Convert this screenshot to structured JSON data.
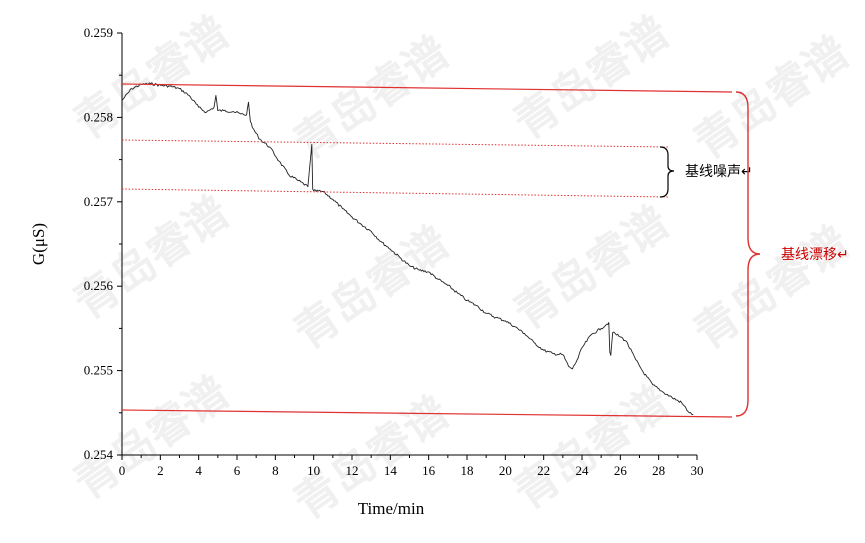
{
  "chart_data": {
    "type": "line",
    "xlabel": "Time/min",
    "ylabel": "G(μS)",
    "xlim": [
      0,
      30
    ],
    "ylim": [
      0.254,
      0.259
    ],
    "x_ticks": [
      "0",
      "2",
      "4",
      "6",
      "8",
      "10",
      "12",
      "14",
      "16",
      "18",
      "20",
      "22",
      "24",
      "26",
      "28",
      "30"
    ],
    "y_ticks": [
      "0.254",
      "0.255",
      "0.256",
      "0.257",
      "0.258",
      "0.259"
    ],
    "grid": false,
    "series": [
      {
        "color": "#222222",
        "x": [
          0,
          0.5,
          1,
          1.5,
          2,
          2.5,
          3,
          3.5,
          4,
          4.4,
          4.8,
          4.9,
          5.0,
          5.3,
          5.8,
          6.2,
          6.5,
          6.6,
          6.7,
          6.8,
          7.2,
          7.7,
          8.2,
          8.7,
          9.2,
          9.7,
          9.9,
          9.95,
          10.0,
          10.5,
          11,
          11.5,
          12,
          12.5,
          13,
          13.5,
          14,
          14.5,
          15,
          15.5,
          16,
          16.5,
          17,
          17.5,
          18,
          18.5,
          19,
          19.5,
          20,
          20.5,
          21,
          21.5,
          22,
          22.5,
          23,
          23.3,
          23.5,
          23.8,
          24,
          24.5,
          25,
          25.3,
          25.4,
          25.45,
          25.5,
          25.6,
          26,
          26.3,
          26.8,
          27.2,
          27.7,
          28.2,
          28.7,
          29.2,
          29.6,
          29.8
        ],
        "y": [
          0.2582,
          0.25834,
          0.25839,
          0.2584,
          0.25838,
          0.25837,
          0.25834,
          0.25826,
          0.25812,
          0.25806,
          0.25812,
          0.25826,
          0.25808,
          0.25808,
          0.25807,
          0.25804,
          0.25803,
          0.25818,
          0.25795,
          0.25788,
          0.25774,
          0.25765,
          0.25748,
          0.25732,
          0.25725,
          0.25718,
          0.25768,
          0.25715,
          0.25713,
          0.25712,
          0.25703,
          0.25692,
          0.25682,
          0.25673,
          0.25665,
          0.25653,
          0.25644,
          0.25634,
          0.25624,
          0.25619,
          0.25617,
          0.25608,
          0.25601,
          0.25592,
          0.25583,
          0.25577,
          0.25568,
          0.25563,
          0.25559,
          0.25552,
          0.25544,
          0.25533,
          0.25524,
          0.2552,
          0.25519,
          0.25505,
          0.25502,
          0.25515,
          0.25527,
          0.25543,
          0.2555,
          0.25555,
          0.25557,
          0.25522,
          0.25518,
          0.25545,
          0.2554,
          0.25535,
          0.25513,
          0.25498,
          0.25483,
          0.25475,
          0.25468,
          0.25462,
          0.2545,
          0.25448
        ]
      }
    ],
    "annotations": [
      {
        "text": "基线噪声↵",
        "color": "#000000"
      },
      {
        "text": "基线漂移↵",
        "color": "#cc0000"
      }
    ]
  },
  "watermark": "青岛睿谱",
  "colors": {
    "annotation_red": "#e03030",
    "drift_label": "#cc0000"
  }
}
